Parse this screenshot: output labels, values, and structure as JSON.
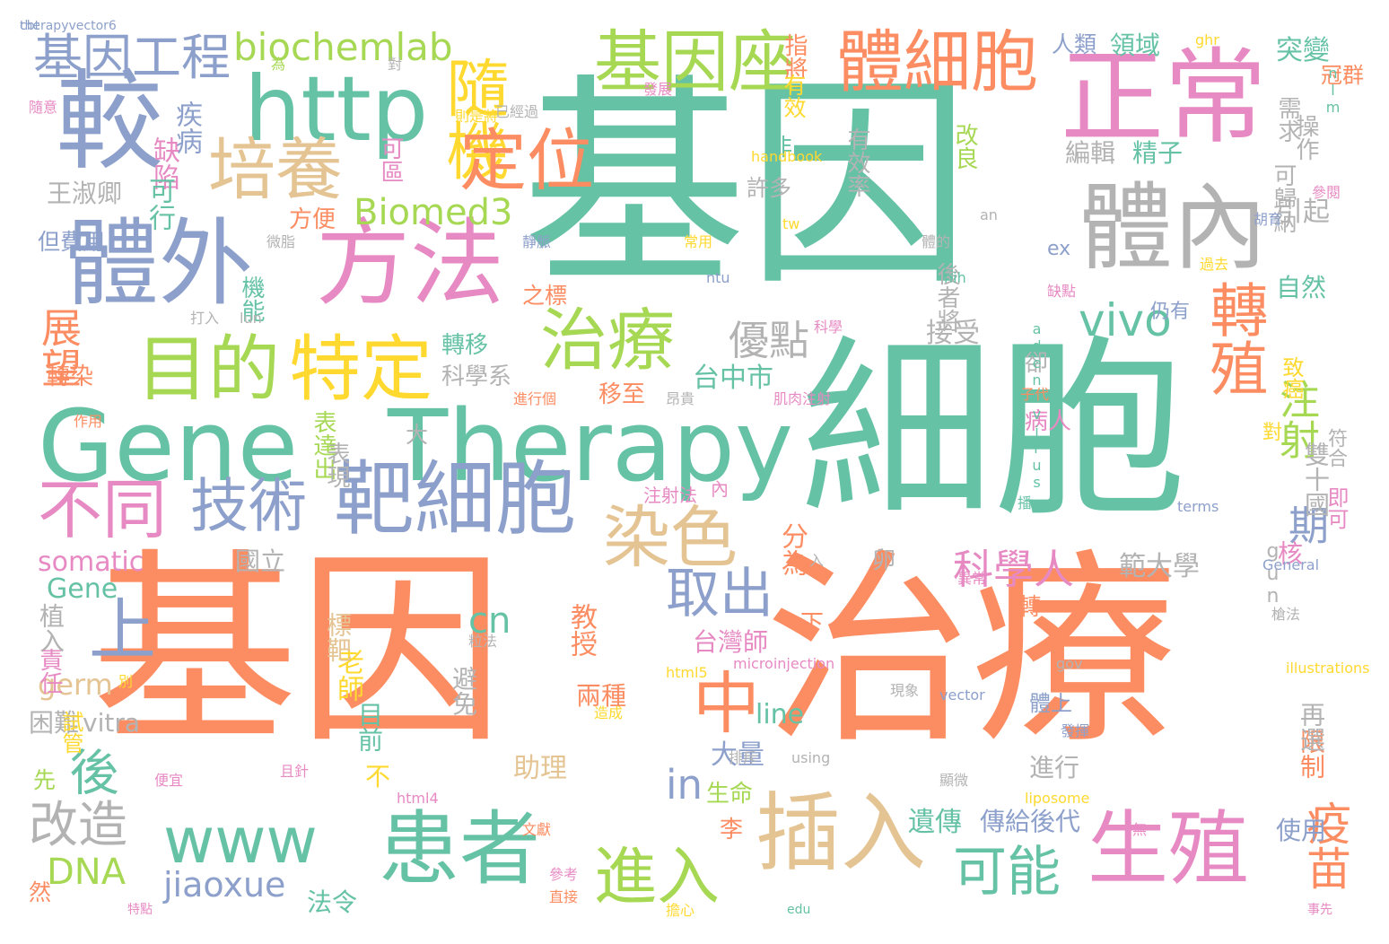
{
  "words": [
    {
      "text": "基因",
      "color": "#66c2a5",
      "weight": 1.0
    },
    {
      "text": "細胞",
      "color": "#66c2a5",
      "weight": 0.95
    },
    {
      "text": "基因",
      "color": "#fc8d62",
      "weight": 0.95
    },
    {
      "text": "治療",
      "color": "#fc8d62",
      "weight": 0.95
    },
    {
      "text": "Gene",
      "color": "#66c2a5",
      "weight": 0.6
    },
    {
      "text": "Therapy",
      "color": "#66c2a5",
      "weight": 0.6
    },
    {
      "text": "正常",
      "color": "#e78ac3",
      "weight": 0.45
    },
    {
      "text": "體內",
      "color": "#b3b3b3",
      "weight": 0.45
    },
    {
      "text": "較",
      "color": "#8da0cb",
      "weight": 0.45
    },
    {
      "text": "http",
      "color": "#66c2a5",
      "weight": 0.4
    },
    {
      "text": "體外",
      "color": "#8da0cb",
      "weight": 0.42
    },
    {
      "text": "方法",
      "color": "#e78ac3",
      "weight": 0.42
    },
    {
      "text": "體細胞",
      "color": "#fc8d62",
      "weight": 0.3
    },
    {
      "text": "基因座",
      "color": "#a6d854",
      "weight": 0.3
    },
    {
      "text": "隨機",
      "color": "#ffd92f",
      "weight": 0.3
    },
    {
      "text": "靶細胞",
      "color": "#8da0cb",
      "weight": 0.35
    },
    {
      "text": "www",
      "color": "#66c2a5",
      "weight": 0.33
    },
    {
      "text": "患者",
      "color": "#66c2a5",
      "weight": 0.33
    },
    {
      "text": "插入",
      "color": "#e5c494",
      "weight": 0.33
    },
    {
      "text": "生殖",
      "color": "#e78ac3",
      "weight": 0.33
    },
    {
      "text": "進入",
      "color": "#a6d854",
      "weight": 0.28
    },
    {
      "text": "目的",
      "color": "#a6d854",
      "weight": 0.28
    },
    {
      "text": "特定",
      "color": "#ffd92f",
      "weight": 0.28
    },
    {
      "text": "培養",
      "color": "#e5c494",
      "weight": 0.25
    },
    {
      "text": "定位",
      "color": "#fc8d62",
      "weight": 0.22
    },
    {
      "text": "治療",
      "color": "#a6d854",
      "weight": 0.25
    },
    {
      "text": "不同",
      "color": "#e78ac3",
      "weight": 0.25
    },
    {
      "text": "技術",
      "color": "#8da0cb",
      "weight": 0.22
    },
    {
      "text": "染色",
      "color": "#e5c494",
      "weight": 0.25
    },
    {
      "text": "取出",
      "color": "#8da0cb",
      "weight": 0.22
    },
    {
      "text": "轉殖",
      "color": "#fc8d62",
      "weight": 0.22
    },
    {
      "text": "vivo",
      "color": "#66c2a5",
      "weight": 0.2
    },
    {
      "text": "可能",
      "color": "#66c2a5",
      "weight": 0.22
    },
    {
      "text": "疫苗",
      "color": "#fc8d62",
      "weight": 0.18
    },
    {
      "text": "基因工程",
      "color": "#8da0cb",
      "weight": 0.18
    },
    {
      "text": "biochemlab",
      "color": "#a6d854",
      "weight": 0.14
    },
    {
      "text": "Biomed3",
      "color": "#a6d854",
      "weight": 0.15
    },
    {
      "text": "科學人",
      "color": "#e78ac3",
      "weight": 0.16
    },
    {
      "text": "優點",
      "color": "#b3b3b3",
      "weight": 0.16
    },
    {
      "text": "注射",
      "color": "#a6d854",
      "weight": 0.16
    },
    {
      "text": "期",
      "color": "#8da0cb",
      "weight": 0.16
    },
    {
      "text": "展望",
      "color": "#fc8d62",
      "weight": 0.16
    },
    {
      "text": "上",
      "color": "#8da0cb",
      "weight": 0.22
    },
    {
      "text": "後",
      "color": "#66c2a5",
      "weight": 0.16
    },
    {
      "text": "改造",
      "color": "#b3b3b3",
      "weight": 0.16
    },
    {
      "text": "中",
      "color": "#fc8d62",
      "weight": 0.2
    },
    {
      "text": "in",
      "color": "#8da0cb",
      "weight": 0.16
    },
    {
      "text": "DNA",
      "color": "#a6d854",
      "weight": 0.13
    },
    {
      "text": "jiaoxue",
      "color": "#8da0cb",
      "weight": 0.12
    },
    {
      "text": "cn",
      "color": "#66c2a5",
      "weight": 0.1
    },
    {
      "text": "somatic",
      "color": "#e78ac3",
      "weight": 0.09
    },
    {
      "text": "Gene",
      "color": "#66c2a5",
      "weight": 0.08
    },
    {
      "text": "germ",
      "color": "#e5c494",
      "weight": 0.08
    },
    {
      "text": "vitra",
      "color": "#b3b3b3",
      "weight": 0.07
    },
    {
      "text": "line",
      "color": "#66c2a5",
      "weight": 0.08
    },
    {
      "text": "疾病",
      "color": "#8da0cb",
      "weight": 0.08
    },
    {
      "text": "缺陷",
      "color": "#e78ac3",
      "weight": 0.08
    },
    {
      "text": "王淑卿",
      "color": "#b3b3b3",
      "weight": 0.07
    },
    {
      "text": "可行",
      "color": "#66c2a5",
      "weight": 0.07
    },
    {
      "text": "台中市",
      "color": "#66c2a5",
      "weight": 0.08
    },
    {
      "text": "台灣師",
      "color": "#e78ac3",
      "weight": 0.07
    },
    {
      "text": "國立",
      "color": "#b3b3b3",
      "weight": 0.07
    },
    {
      "text": "教授",
      "color": "#fc8d62",
      "weight": 0.07
    },
    {
      "text": "老師",
      "color": "#ffd92f",
      "weight": 0.07
    },
    {
      "text": "助理",
      "color": "#e5c494",
      "weight": 0.07
    },
    {
      "text": "遺傳",
      "color": "#66c2a5",
      "weight": 0.07
    },
    {
      "text": "傳給後代",
      "color": "#8da0cb",
      "weight": 0.07
    },
    {
      "text": "轉移",
      "color": "#66c2a5",
      "weight": 0.07
    },
    {
      "text": "科學系",
      "color": "#b3b3b3",
      "weight": 0.06
    },
    {
      "text": "編輯",
      "color": "#b3b3b3",
      "weight": 0.06
    },
    {
      "text": "精子",
      "color": "#66c2a5",
      "weight": 0.06
    },
    {
      "text": "突變",
      "color": "#66c2a5",
      "weight": 0.06
    },
    {
      "text": "領域",
      "color": "#66c2a5",
      "weight": 0.06
    },
    {
      "text": "人類",
      "color": "#8da0cb",
      "weight": 0.06
    },
    {
      "text": "引起",
      "color": "#b3b3b3",
      "weight": 0.05
    },
    {
      "text": "自然",
      "color": "#66c2a5",
      "weight": 0.06
    },
    {
      "text": "接受",
      "color": "#b3b3b3",
      "weight": 0.06
    },
    {
      "text": "雙十國",
      "color": "#b3b3b3",
      "weight": 0.06
    },
    {
      "text": "範大學",
      "color": "#b3b3b3",
      "weight": 0.06
    },
    {
      "text": "分為",
      "color": "#fc8d62",
      "weight": 0.06
    },
    {
      "text": "標靶",
      "color": "#e5c494",
      "weight": 0.06
    },
    {
      "text": "避免",
      "color": "#b3b3b3",
      "weight": 0.06
    },
    {
      "text": "兩種",
      "color": "#fc8d62",
      "weight": 0.05
    },
    {
      "text": "大量",
      "color": "#8da0cb",
      "weight": 0.05
    },
    {
      "text": "生命",
      "color": "#a6d854",
      "weight": 0.06
    },
    {
      "text": "進行",
      "color": "#b3b3b3",
      "weight": 0.05
    },
    {
      "text": "使用",
      "color": "#8da0cb",
      "weight": 0.05
    },
    {
      "text": "法令",
      "color": "#66c2a5",
      "weight": 0.05
    },
    {
      "text": "限制",
      "color": "#fc8d62",
      "weight": 0.05
    },
    {
      "text": "再選",
      "color": "#b3b3b3",
      "weight": 0.05
    },
    {
      "text": "目前",
      "color": "#66c2a5",
      "weight": 0.05
    },
    {
      "text": "植入",
      "color": "#b3b3b3",
      "weight": 0.05
    },
    {
      "text": "責任",
      "color": "#e78ac3",
      "weight": 0.05
    },
    {
      "text": "困難",
      "color": "#b3b3b3",
      "weight": 0.04
    },
    {
      "text": "轉染",
      "color": "#fc8d62",
      "weight": 0.05
    },
    {
      "text": "表達出",
      "color": "#a6d854",
      "weight": 0.04
    },
    {
      "text": "表現",
      "color": "#b3b3b3",
      "weight": 0.04
    },
    {
      "text": "之標",
      "color": "#fc8d62",
      "weight": 0.04
    },
    {
      "text": "機能",
      "color": "#66c2a5",
      "weight": 0.04
    },
    {
      "text": "移至",
      "color": "#fc8d62",
      "weight": 0.04
    },
    {
      "text": "方便",
      "color": "#fc8d62",
      "weight": 0.04
    },
    {
      "text": "可區",
      "color": "#e78ac3",
      "weight": 0.04
    },
    {
      "text": "許多",
      "color": "#b3b3b3",
      "weight": 0.04
    },
    {
      "text": "有效率",
      "color": "#b3b3b3",
      "weight": 0.04
    },
    {
      "text": "改良",
      "color": "#a6d854",
      "weight": 0.04
    },
    {
      "text": "核",
      "color": "#e78ac3",
      "weight": 0.04
    },
    {
      "text": "即可",
      "color": "#e78ac3",
      "weight": 0.04
    },
    {
      "text": "符合",
      "color": "#b3b3b3",
      "weight": 0.04
    },
    {
      "text": "需求",
      "color": "#b3b3b3",
      "weight": 0.04
    },
    {
      "text": "操作",
      "color": "#b3b3b3",
      "weight": 0.04
    },
    {
      "text": "可歸納",
      "color": "#b3b3b3",
      "weight": 0.04
    },
    {
      "text": "冠群",
      "color": "#fc8d62",
      "weight": 0.04
    },
    {
      "text": "指將",
      "color": "#fc8d62",
      "weight": 0.04
    },
    {
      "text": "有效",
      "color": "#ffd92f",
      "weight": 0.04
    },
    {
      "text": "致癌",
      "color": "#ffd92f",
      "weight": 0.04
    },
    {
      "text": "仍有",
      "color": "#8da0cb",
      "weight": 0.04
    },
    {
      "text": "後者將",
      "color": "#b3b3b3",
      "weight": 0.04
    },
    {
      "text": "病人",
      "color": "#e78ac3",
      "weight": 0.03
    },
    {
      "text": "卻",
      "color": "#b3b3b3",
      "weight": 0.04
    },
    {
      "text": "李",
      "color": "#fc8d62",
      "weight": 0.04
    },
    {
      "text": "卵",
      "color": "#b3b3b3",
      "weight": 0.04
    },
    {
      "text": "非",
      "color": "#66c2a5",
      "weight": 0.04
    },
    {
      "text": "不",
      "color": "#ffd92f",
      "weight": 0.04
    },
    {
      "text": "下",
      "color": "#fc8d62",
      "weight": 0.04
    },
    {
      "text": "轉",
      "color": "#fc8d62",
      "weight": 0.04
    },
    {
      "text": "體上",
      "color": "#8da0cb",
      "weight": 0.04
    },
    {
      "text": "試管",
      "color": "#ffd92f",
      "weight": 0.04
    },
    {
      "text": "先",
      "color": "#a6d854",
      "weight": 0.03
    },
    {
      "text": "但費用",
      "color": "#8da0cb",
      "weight": 0.03
    },
    {
      "text": "然",
      "color": "#fc8d62",
      "weight": 0.03
    },
    {
      "text": "大",
      "color": "#b3b3b3",
      "weight": 0.03
    },
    {
      "text": "注射法",
      "color": "#e78ac3",
      "weight": 0.03
    },
    {
      "text": "內",
      "color": "#e78ac3",
      "weight": 0.03
    },
    {
      "text": "ex",
      "color": "#8da0cb",
      "weight": 0.03
    },
    {
      "text": "gun",
      "color": "#b3b3b3",
      "weight": 0.03
    },
    {
      "text": "對",
      "color": "#ffd92f",
      "weight": 0.03
    },
    {
      "text": "為",
      "color": "#a6d854",
      "weight": 0.03
    },
    {
      "text": "對",
      "color": "#b3b3b3",
      "weight": 0.03
    },
    {
      "text": "發展",
      "color": "#e78ac3",
      "weight": 0.02
    },
    {
      "text": "已經過",
      "color": "#b3b3b3",
      "weight": 0.02
    },
    {
      "text": "則是將",
      "color": "#ffd92f",
      "weight": 0.02
    },
    {
      "text": "隨意",
      "color": "#e78ac3",
      "weight": 0.02
    },
    {
      "text": "ghr",
      "color": "#ffd92f",
      "weight": 0.02
    },
    {
      "text": "nlm",
      "color": "#66c2a5",
      "weight": 0.02
    },
    {
      "text": "handbook",
      "color": "#ffd92f",
      "weight": 0.02
    },
    {
      "text": "參閱",
      "color": "#e78ac3",
      "weight": 0.02
    },
    {
      "text": "胡育",
      "color": "#8da0cb",
      "weight": 0.02
    },
    {
      "text": "an",
      "color": "#b3b3b3",
      "weight": 0.02
    },
    {
      "text": "tw",
      "color": "#ffd92f",
      "weight": 0.02
    },
    {
      "text": "過去",
      "color": "#ffd92f",
      "weight": 0.02
    },
    {
      "text": "靜脈",
      "color": "#8da0cb",
      "weight": 0.02
    },
    {
      "text": "微脂",
      "color": "#b3b3b3",
      "weight": 0.02
    },
    {
      "text": "常用",
      "color": "#ffd92f",
      "weight": 0.02
    },
    {
      "text": "體的",
      "color": "#b3b3b3",
      "weight": 0.02
    },
    {
      "text": "ntu",
      "color": "#8da0cb",
      "weight": 0.02
    },
    {
      "text": "nih",
      "color": "#66c2a5",
      "weight": 0.02
    },
    {
      "text": "打入",
      "color": "#b3b3b3",
      "weight": 0.02
    },
    {
      "text": "lun",
      "color": "#b3b3b3",
      "weight": 0.02
    },
    {
      "text": "科學",
      "color": "#e78ac3",
      "weight": 0.02
    },
    {
      "text": "缺點",
      "color": "#e78ac3",
      "weight": 0.02
    },
    {
      "text": "adenovirus",
      "color": "#66c2a5",
      "weight": 0.02
    },
    {
      "text": "進行個",
      "color": "#fc8d62",
      "weight": 0.02
    },
    {
      "text": "昂貴",
      "color": "#b3b3b3",
      "weight": 0.02
    },
    {
      "text": "肌肉注射",
      "color": "#e78ac3",
      "weight": 0.02
    },
    {
      "text": "作用",
      "color": "#fc8d62",
      "weight": 0.02
    },
    {
      "text": "子代",
      "color": "#fc8d62",
      "weight": 0.02
    },
    {
      "text": "terms",
      "color": "#8da0cb",
      "weight": 0.02
    },
    {
      "text": "播",
      "color": "#66c2a5",
      "weight": 0.02
    },
    {
      "text": "入",
      "color": "#b3b3b3",
      "weight": 0.02
    },
    {
      "text": "異常",
      "color": "#e78ac3",
      "weight": 0.02
    },
    {
      "text": "General",
      "color": "#8da0cb",
      "weight": 0.02
    },
    {
      "text": "槍法",
      "color": "#b3b3b3",
      "weight": 0.02
    },
    {
      "text": "粒法",
      "color": "#b3b3b3",
      "weight": 0.02
    },
    {
      "text": "microinjection",
      "color": "#e78ac3",
      "weight": 0.02
    },
    {
      "text": "html5",
      "color": "#ffd92f",
      "weight": 0.02
    },
    {
      "text": "gov",
      "color": "#b3b3b3",
      "weight": 0.02
    },
    {
      "text": "別",
      "color": "#ffd92f",
      "weight": 0.02
    },
    {
      "text": "現象",
      "color": "#b3b3b3",
      "weight": 0.02
    },
    {
      "text": "vector",
      "color": "#8da0cb",
      "weight": 0.02
    },
    {
      "text": "illustrations",
      "color": "#ffd92f",
      "weight": 0.02
    },
    {
      "text": "造成",
      "color": "#ffd92f",
      "weight": 0.02
    },
    {
      "text": "排斥",
      "color": "#b3b3b3",
      "weight": 0.02
    },
    {
      "text": "using",
      "color": "#b3b3b3",
      "weight": 0.02
    },
    {
      "text": "發揮",
      "color": "#8da0cb",
      "weight": 0.02
    },
    {
      "text": "且針",
      "color": "#e78ac3",
      "weight": 0.02
    },
    {
      "text": "便宜",
      "color": "#e78ac3",
      "weight": 0.02
    },
    {
      "text": "顯微",
      "color": "#b3b3b3",
      "weight": 0.02
    },
    {
      "text": "liposome",
      "color": "#ffd92f",
      "weight": 0.02
    },
    {
      "text": "html4",
      "color": "#e78ac3",
      "weight": 0.02
    },
    {
      "text": "文獻",
      "color": "#fc8d62",
      "weight": 0.02
    },
    {
      "text": "無",
      "color": "#e78ac3",
      "weight": 0.02
    },
    {
      "text": "參考",
      "color": "#e78ac3",
      "weight": 0.02
    },
    {
      "text": "直接",
      "color": "#fc8d62",
      "weight": 0.02
    },
    {
      "text": "特點",
      "color": "#e78ac3",
      "weight": 0.02
    },
    {
      "text": "擔心",
      "color": "#ffd92f",
      "weight": 0.02
    },
    {
      "text": "edu",
      "color": "#66c2a5",
      "weight": 0.02
    },
    {
      "text": "事先",
      "color": "#e78ac3",
      "weight": 0.02
    },
    {
      "text": "therapyvector6",
      "color": "#8da0cb",
      "weight": 0.02
    },
    {
      "text": "cbt",
      "color": "#8da0cb",
      "weight": 0.02
    }
  ]
}
